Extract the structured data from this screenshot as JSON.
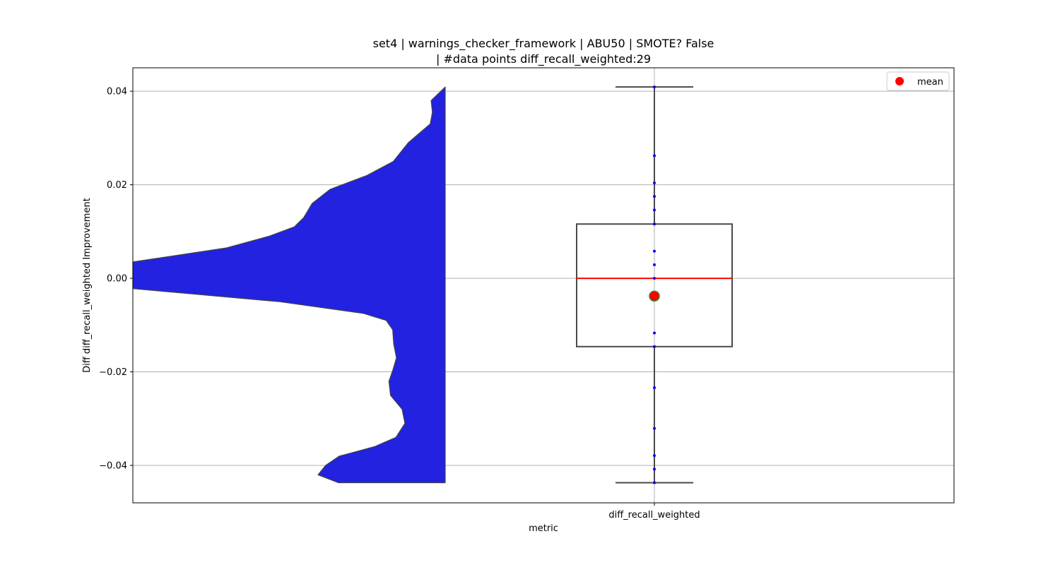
{
  "chart_data": {
    "type": "violin-box",
    "title": "set4 | warnings_checker_framework | ABU50 | SMOTE? False",
    "subtitle": "| #data points diff_recall_weighted:29",
    "xlabel": "metric",
    "ylabel": "Diff diff_recall_weighted Improvement",
    "categories": [
      "diff_recall_weighted"
    ],
    "ylim": [
      -0.048,
      0.045
    ],
    "yticks": [
      0.04,
      0.02,
      0.0,
      -0.02,
      -0.04
    ],
    "ytick_labels": [
      "0.04",
      "0.02",
      "0.00",
      "−0.02",
      "−0.04"
    ],
    "grid": true,
    "legend": {
      "position": "top-right",
      "entries": [
        {
          "label": "mean",
          "color": "#ff0000"
        }
      ]
    },
    "box": {
      "min": -0.0437,
      "q1": -0.0146,
      "median": 0.0,
      "q3": 0.0116,
      "max": 0.0409,
      "mean": -0.0038,
      "box_color": "#ffffff",
      "edge_color": "#4a4a4a",
      "median_color": "#ff0000",
      "mean_color": "#ff0000",
      "mean_edge_color": "#2e8b2e"
    },
    "points": [
      0.0409,
      0.0262,
      0.0204,
      0.0175,
      0.0146,
      0.0116,
      0.0058,
      0.0029,
      0.0,
      -0.0117,
      -0.0146,
      -0.0234,
      -0.0321,
      -0.0379,
      -0.0408,
      -0.0437
    ],
    "point_color": "#0000ff",
    "violin": {
      "color": "#2222e0",
      "edge_color": "#444444",
      "density": [
        [
          0.0409,
          0.0
        ],
        [
          0.038,
          0.045
        ],
        [
          0.0355,
          0.041
        ],
        [
          0.033,
          0.048
        ],
        [
          0.029,
          0.118
        ],
        [
          0.025,
          0.166
        ],
        [
          0.022,
          0.25
        ],
        [
          0.019,
          0.369
        ],
        [
          0.016,
          0.426
        ],
        [
          0.013,
          0.453
        ],
        [
          0.011,
          0.483
        ],
        [
          0.009,
          0.564
        ],
        [
          0.0065,
          0.7
        ],
        [
          0.0035,
          1.0
        ],
        [
          0.0,
          1.0
        ],
        [
          -0.0022,
          1.0
        ],
        [
          -0.005,
          0.53
        ],
        [
          -0.0075,
          0.262
        ],
        [
          -0.009,
          0.189
        ],
        [
          -0.011,
          0.168
        ],
        [
          -0.014,
          0.165
        ],
        [
          -0.017,
          0.156
        ],
        [
          -0.0195,
          0.167
        ],
        [
          -0.022,
          0.18
        ],
        [
          -0.025,
          0.175
        ],
        [
          -0.028,
          0.138
        ],
        [
          -0.031,
          0.129
        ],
        [
          -0.034,
          0.158
        ],
        [
          -0.036,
          0.227
        ],
        [
          -0.038,
          0.339
        ],
        [
          -0.04,
          0.383
        ],
        [
          -0.042,
          0.407
        ],
        [
          -0.0437,
          0.342
        ]
      ]
    }
  }
}
